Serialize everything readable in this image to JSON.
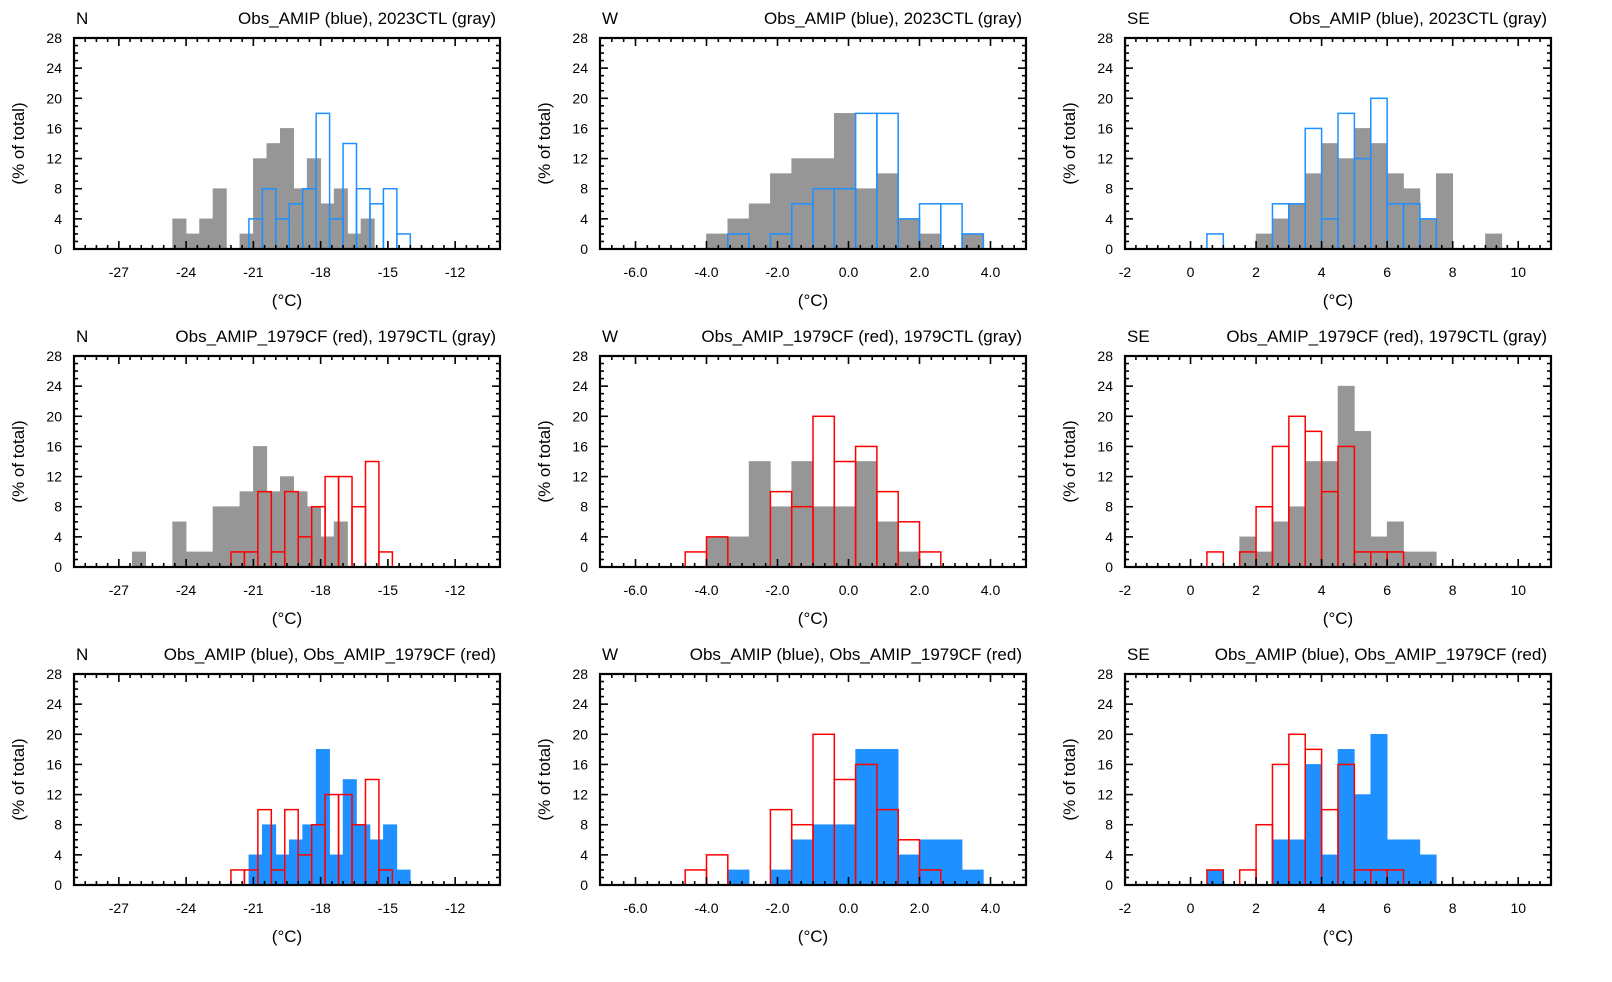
{
  "colors": {
    "gray": "#969696",
    "blue": "#1e90ff",
    "red": "#ff0000",
    "axis": "#000000"
  },
  "y_axis_label": "(% of total)",
  "x_axis_label": "(°C)",
  "chart_data": [
    {
      "type": "bar",
      "region": "N",
      "title": "Obs_AMIP (blue), 2023CTL (gray)",
      "xlim": [
        -29,
        -10
      ],
      "ylim": [
        0,
        28
      ],
      "bin_width": 0.6,
      "xticks": [
        -27,
        -24,
        -21,
        -18,
        -15,
        -12
      ],
      "yticks": [
        0,
        4,
        8,
        12,
        16,
        20,
        24,
        28
      ],
      "xlabel": "(°C)",
      "ylabel": "(% of total)",
      "series": [
        {
          "name": "2023CTL",
          "style": "filled",
          "color_key": "gray",
          "bin_starts": [
            -24.6,
            -24.0,
            -23.4,
            -22.8,
            -22.2,
            -21.6,
            -21.0,
            -20.4,
            -19.8,
            -19.2,
            -18.6,
            -18.0,
            -17.4,
            -16.8,
            -16.2
          ],
          "values": [
            4,
            2,
            4,
            8,
            0,
            2,
            12,
            14,
            16,
            8,
            12,
            6,
            8,
            2,
            4
          ]
        },
        {
          "name": "Obs_AMIP",
          "style": "outline",
          "color_key": "blue",
          "bin_starts": [
            -21.2,
            -20.6,
            -20.0,
            -19.4,
            -18.8,
            -18.2,
            -17.6,
            -17.0,
            -16.4,
            -15.8,
            -15.2,
            -14.6
          ],
          "values": [
            4,
            8,
            4,
            6,
            8,
            18,
            4,
            14,
            8,
            6,
            8,
            2
          ]
        }
      ]
    },
    {
      "type": "bar",
      "region": "W",
      "title": "Obs_AMIP (blue), 2023CTL (gray)",
      "xlim": [
        -7,
        5
      ],
      "ylim": [
        0,
        28
      ],
      "bin_width": 0.6,
      "xticks": [
        -6.0,
        -4.0,
        -2.0,
        0.0,
        2.0,
        4.0
      ],
      "xtick_labels": [
        "-6.0",
        "-4.0",
        "-2.0",
        "0.0",
        "2.0",
        "4.0"
      ],
      "yticks": [
        0,
        4,
        8,
        12,
        16,
        20,
        24,
        28
      ],
      "xlabel": "(°C)",
      "ylabel": "(% of total)",
      "series": [
        {
          "name": "2023CTL",
          "style": "filled",
          "color_key": "gray",
          "bin_starts": [
            -4.0,
            -3.4,
            -2.8,
            -2.2,
            -1.6,
            -1.0,
            -0.4,
            0.2,
            0.8,
            1.4,
            2.0,
            2.6,
            3.2
          ],
          "values": [
            2,
            4,
            6,
            10,
            12,
            12,
            18,
            8,
            10,
            4,
            2,
            0,
            2
          ]
        },
        {
          "name": "Obs_AMIP",
          "style": "outline",
          "color_key": "blue",
          "bin_starts": [
            -4.0,
            -3.4,
            -2.8,
            -2.2,
            -1.6,
            -1.0,
            -0.4,
            0.2,
            0.8,
            1.4,
            2.0,
            2.6,
            3.2
          ],
          "values": [
            0,
            2,
            0,
            2,
            6,
            8,
            8,
            18,
            18,
            4,
            6,
            6,
            2
          ]
        }
      ]
    },
    {
      "type": "bar",
      "region": "SE",
      "title": "Obs_AMIP (blue), 2023CTL (gray)",
      "xlim": [
        -2,
        11
      ],
      "ylim": [
        0,
        28
      ],
      "bin_width": 0.5,
      "xticks": [
        -2,
        0,
        2,
        4,
        6,
        8,
        10
      ],
      "yticks": [
        0,
        4,
        8,
        12,
        16,
        20,
        24,
        28
      ],
      "xlabel": "(°C)",
      "ylabel": "(% of total)",
      "series": [
        {
          "name": "2023CTL",
          "style": "filled",
          "color_key": "gray",
          "bin_starts": [
            1.5,
            2.0,
            2.5,
            3.0,
            3.5,
            4.0,
            4.5,
            5.0,
            5.5,
            6.0,
            6.5,
            7.0,
            7.5,
            8.0,
            8.5,
            9.0
          ],
          "values": [
            0,
            2,
            4,
            6,
            10,
            14,
            12,
            16,
            14,
            10,
            8,
            4,
            10,
            0,
            0,
            2
          ]
        },
        {
          "name": "Obs_AMIP",
          "style": "outline",
          "color_key": "blue",
          "bin_starts": [
            0.5,
            1.0,
            1.5,
            2.0,
            2.5,
            3.0,
            3.5,
            4.0,
            4.5,
            5.0,
            5.5,
            6.0,
            6.5,
            7.0
          ],
          "values": [
            2,
            0,
            0,
            0,
            6,
            6,
            16,
            4,
            18,
            12,
            20,
            6,
            6,
            4
          ]
        }
      ]
    },
    {
      "type": "bar",
      "region": "N",
      "title": "Obs_AMIP_1979CF (red), 1979CTL (gray)",
      "xlim": [
        -29,
        -10
      ],
      "ylim": [
        0,
        28
      ],
      "bin_width": 0.6,
      "xticks": [
        -27,
        -24,
        -21,
        -18,
        -15,
        -12
      ],
      "yticks": [
        0,
        4,
        8,
        12,
        16,
        20,
        24,
        28
      ],
      "xlabel": "(°C)",
      "ylabel": "(% of total)",
      "series": [
        {
          "name": "1979CTL",
          "style": "filled",
          "color_key": "gray",
          "bin_starts": [
            -26.4,
            -25.8,
            -25.2,
            -24.6,
            -24.0,
            -23.4,
            -22.8,
            -22.2,
            -21.6,
            -21.0,
            -20.4,
            -19.8,
            -19.2,
            -18.6,
            -18.0,
            -17.4
          ],
          "values": [
            2,
            0,
            0,
            6,
            2,
            2,
            8,
            8,
            10,
            16,
            10,
            12,
            10,
            8,
            4,
            6
          ]
        },
        {
          "name": "Obs_AMIP_1979CF",
          "style": "outline",
          "color_key": "red",
          "bin_starts": [
            -22.0,
            -21.4,
            -20.8,
            -20.2,
            -19.6,
            -19.0,
            -18.4,
            -17.8,
            -17.2,
            -16.6,
            -16.0,
            -15.4
          ],
          "values": [
            2,
            2,
            10,
            2,
            10,
            4,
            8,
            12,
            12,
            8,
            14,
            2
          ]
        }
      ]
    },
    {
      "type": "bar",
      "region": "W",
      "title": "Obs_AMIP_1979CF (red), 1979CTL (gray)",
      "xlim": [
        -7,
        5
      ],
      "ylim": [
        0,
        28
      ],
      "bin_width": 0.6,
      "xticks": [
        -6.0,
        -4.0,
        -2.0,
        0.0,
        2.0,
        4.0
      ],
      "xtick_labels": [
        "-6.0",
        "-4.0",
        "-2.0",
        "0.0",
        "2.0",
        "4.0"
      ],
      "yticks": [
        0,
        4,
        8,
        12,
        16,
        20,
        24,
        28
      ],
      "xlabel": "(°C)",
      "ylabel": "(% of total)",
      "series": [
        {
          "name": "1979CTL",
          "style": "filled",
          "color_key": "gray",
          "bin_starts": [
            -4.0,
            -3.4,
            -2.8,
            -2.2,
            -1.6,
            -1.0,
            -0.4,
            0.2,
            0.8,
            1.4
          ],
          "values": [
            4,
            4,
            14,
            8,
            14,
            8,
            8,
            14,
            6,
            2
          ]
        },
        {
          "name": "Obs_AMIP_1979CF",
          "style": "outline",
          "color_key": "red",
          "bin_starts": [
            -4.6,
            -4.0,
            -3.4,
            -2.8,
            -2.2,
            -1.6,
            -1.0,
            -0.4,
            0.2,
            0.8,
            1.4,
            2.0
          ],
          "values": [
            2,
            4,
            0,
            0,
            10,
            8,
            20,
            14,
            16,
            10,
            6,
            2
          ]
        }
      ]
    },
    {
      "type": "bar",
      "region": "SE",
      "title": "Obs_AMIP_1979CF (red), 1979CTL (gray)",
      "xlim": [
        -2,
        11
      ],
      "ylim": [
        0,
        28
      ],
      "bin_width": 0.5,
      "xticks": [
        -2,
        0,
        2,
        4,
        6,
        8,
        10
      ],
      "yticks": [
        0,
        4,
        8,
        12,
        16,
        20,
        24,
        28
      ],
      "xlabel": "(°C)",
      "ylabel": "(% of total)",
      "series": [
        {
          "name": "1979CTL",
          "style": "filled",
          "color_key": "gray",
          "bin_starts": [
            1.5,
            2.0,
            2.5,
            3.0,
            3.5,
            4.0,
            4.5,
            5.0,
            5.5,
            6.0,
            6.5,
            7.0
          ],
          "values": [
            4,
            2,
            6,
            8,
            14,
            14,
            24,
            18,
            4,
            6,
            2,
            2
          ]
        },
        {
          "name": "Obs_AMIP_1979CF",
          "style": "outline",
          "color_key": "red",
          "bin_starts": [
            0.5,
            1.0,
            1.5,
            2.0,
            2.5,
            3.0,
            3.5,
            4.0,
            4.5,
            5.0,
            5.5,
            6.0
          ],
          "values": [
            2,
            0,
            2,
            8,
            16,
            20,
            18,
            10,
            16,
            2,
            2,
            2
          ]
        }
      ]
    },
    {
      "type": "bar",
      "region": "N",
      "title": "Obs_AMIP (blue), Obs_AMIP_1979CF (red)",
      "xlim": [
        -29,
        -10
      ],
      "ylim": [
        0,
        28
      ],
      "bin_width": 0.6,
      "xticks": [
        -27,
        -24,
        -21,
        -18,
        -15,
        -12
      ],
      "yticks": [
        0,
        4,
        8,
        12,
        16,
        20,
        24,
        28
      ],
      "xlabel": "(°C)",
      "ylabel": "(% of total)",
      "series": [
        {
          "name": "Obs_AMIP",
          "style": "filled",
          "color_key": "blue",
          "bin_starts": [
            -21.2,
            -20.6,
            -20.0,
            -19.4,
            -18.8,
            -18.2,
            -17.6,
            -17.0,
            -16.4,
            -15.8,
            -15.2,
            -14.6
          ],
          "values": [
            4,
            8,
            4,
            6,
            8,
            18,
            4,
            14,
            8,
            6,
            8,
            2
          ]
        },
        {
          "name": "Obs_AMIP_1979CF",
          "style": "outline",
          "color_key": "red",
          "bin_starts": [
            -22.0,
            -21.4,
            -20.8,
            -20.2,
            -19.6,
            -19.0,
            -18.4,
            -17.8,
            -17.2,
            -16.6,
            -16.0,
            -15.4
          ],
          "values": [
            2,
            2,
            10,
            2,
            10,
            4,
            8,
            12,
            12,
            8,
            14,
            2
          ]
        }
      ]
    },
    {
      "type": "bar",
      "region": "W",
      "title": "Obs_AMIP (blue), Obs_AMIP_1979CF (red)",
      "xlim": [
        -7,
        5
      ],
      "ylim": [
        0,
        28
      ],
      "bin_width": 0.6,
      "xticks": [
        -6.0,
        -4.0,
        -2.0,
        0.0,
        2.0,
        4.0
      ],
      "xtick_labels": [
        "-6.0",
        "-4.0",
        "-2.0",
        "0.0",
        "2.0",
        "4.0"
      ],
      "yticks": [
        0,
        4,
        8,
        12,
        16,
        20,
        24,
        28
      ],
      "xlabel": "(°C)",
      "ylabel": "(% of total)",
      "series": [
        {
          "name": "Obs_AMIP",
          "style": "filled",
          "color_key": "blue",
          "bin_starts": [
            -4.0,
            -3.4,
            -2.8,
            -2.2,
            -1.6,
            -1.0,
            -0.4,
            0.2,
            0.8,
            1.4,
            2.0,
            2.6,
            3.2
          ],
          "values": [
            0,
            2,
            0,
            2,
            6,
            8,
            8,
            18,
            18,
            4,
            6,
            6,
            2
          ]
        },
        {
          "name": "Obs_AMIP_1979CF",
          "style": "outline",
          "color_key": "red",
          "bin_starts": [
            -4.6,
            -4.0,
            -3.4,
            -2.8,
            -2.2,
            -1.6,
            -1.0,
            -0.4,
            0.2,
            0.8,
            1.4,
            2.0
          ],
          "values": [
            2,
            4,
            0,
            0,
            10,
            8,
            20,
            14,
            16,
            10,
            6,
            2
          ]
        }
      ]
    },
    {
      "type": "bar",
      "region": "SE",
      "title": "Obs_AMIP (blue), Obs_AMIP_1979CF (red)",
      "xlim": [
        -2,
        11
      ],
      "ylim": [
        0,
        28
      ],
      "bin_width": 0.5,
      "xticks": [
        -2,
        0,
        2,
        4,
        6,
        8,
        10
      ],
      "yticks": [
        0,
        4,
        8,
        12,
        16,
        20,
        24,
        28
      ],
      "xlabel": "(°C)",
      "ylabel": "(% of total)",
      "series": [
        {
          "name": "Obs_AMIP",
          "style": "filled",
          "color_key": "blue",
          "bin_starts": [
            0.5,
            1.0,
            1.5,
            2.0,
            2.5,
            3.0,
            3.5,
            4.0,
            4.5,
            5.0,
            5.5,
            6.0,
            6.5,
            7.0
          ],
          "values": [
            2,
            0,
            0,
            0,
            6,
            6,
            16,
            4,
            18,
            12,
            20,
            6,
            6,
            4
          ]
        },
        {
          "name": "Obs_AMIP_1979CF",
          "style": "outline",
          "color_key": "red",
          "bin_starts": [
            0.5,
            1.0,
            1.5,
            2.0,
            2.5,
            3.0,
            3.5,
            4.0,
            4.5,
            5.0,
            5.5,
            6.0
          ],
          "values": [
            2,
            0,
            2,
            8,
            16,
            20,
            18,
            10,
            16,
            2,
            2,
            2
          ]
        }
      ]
    }
  ]
}
